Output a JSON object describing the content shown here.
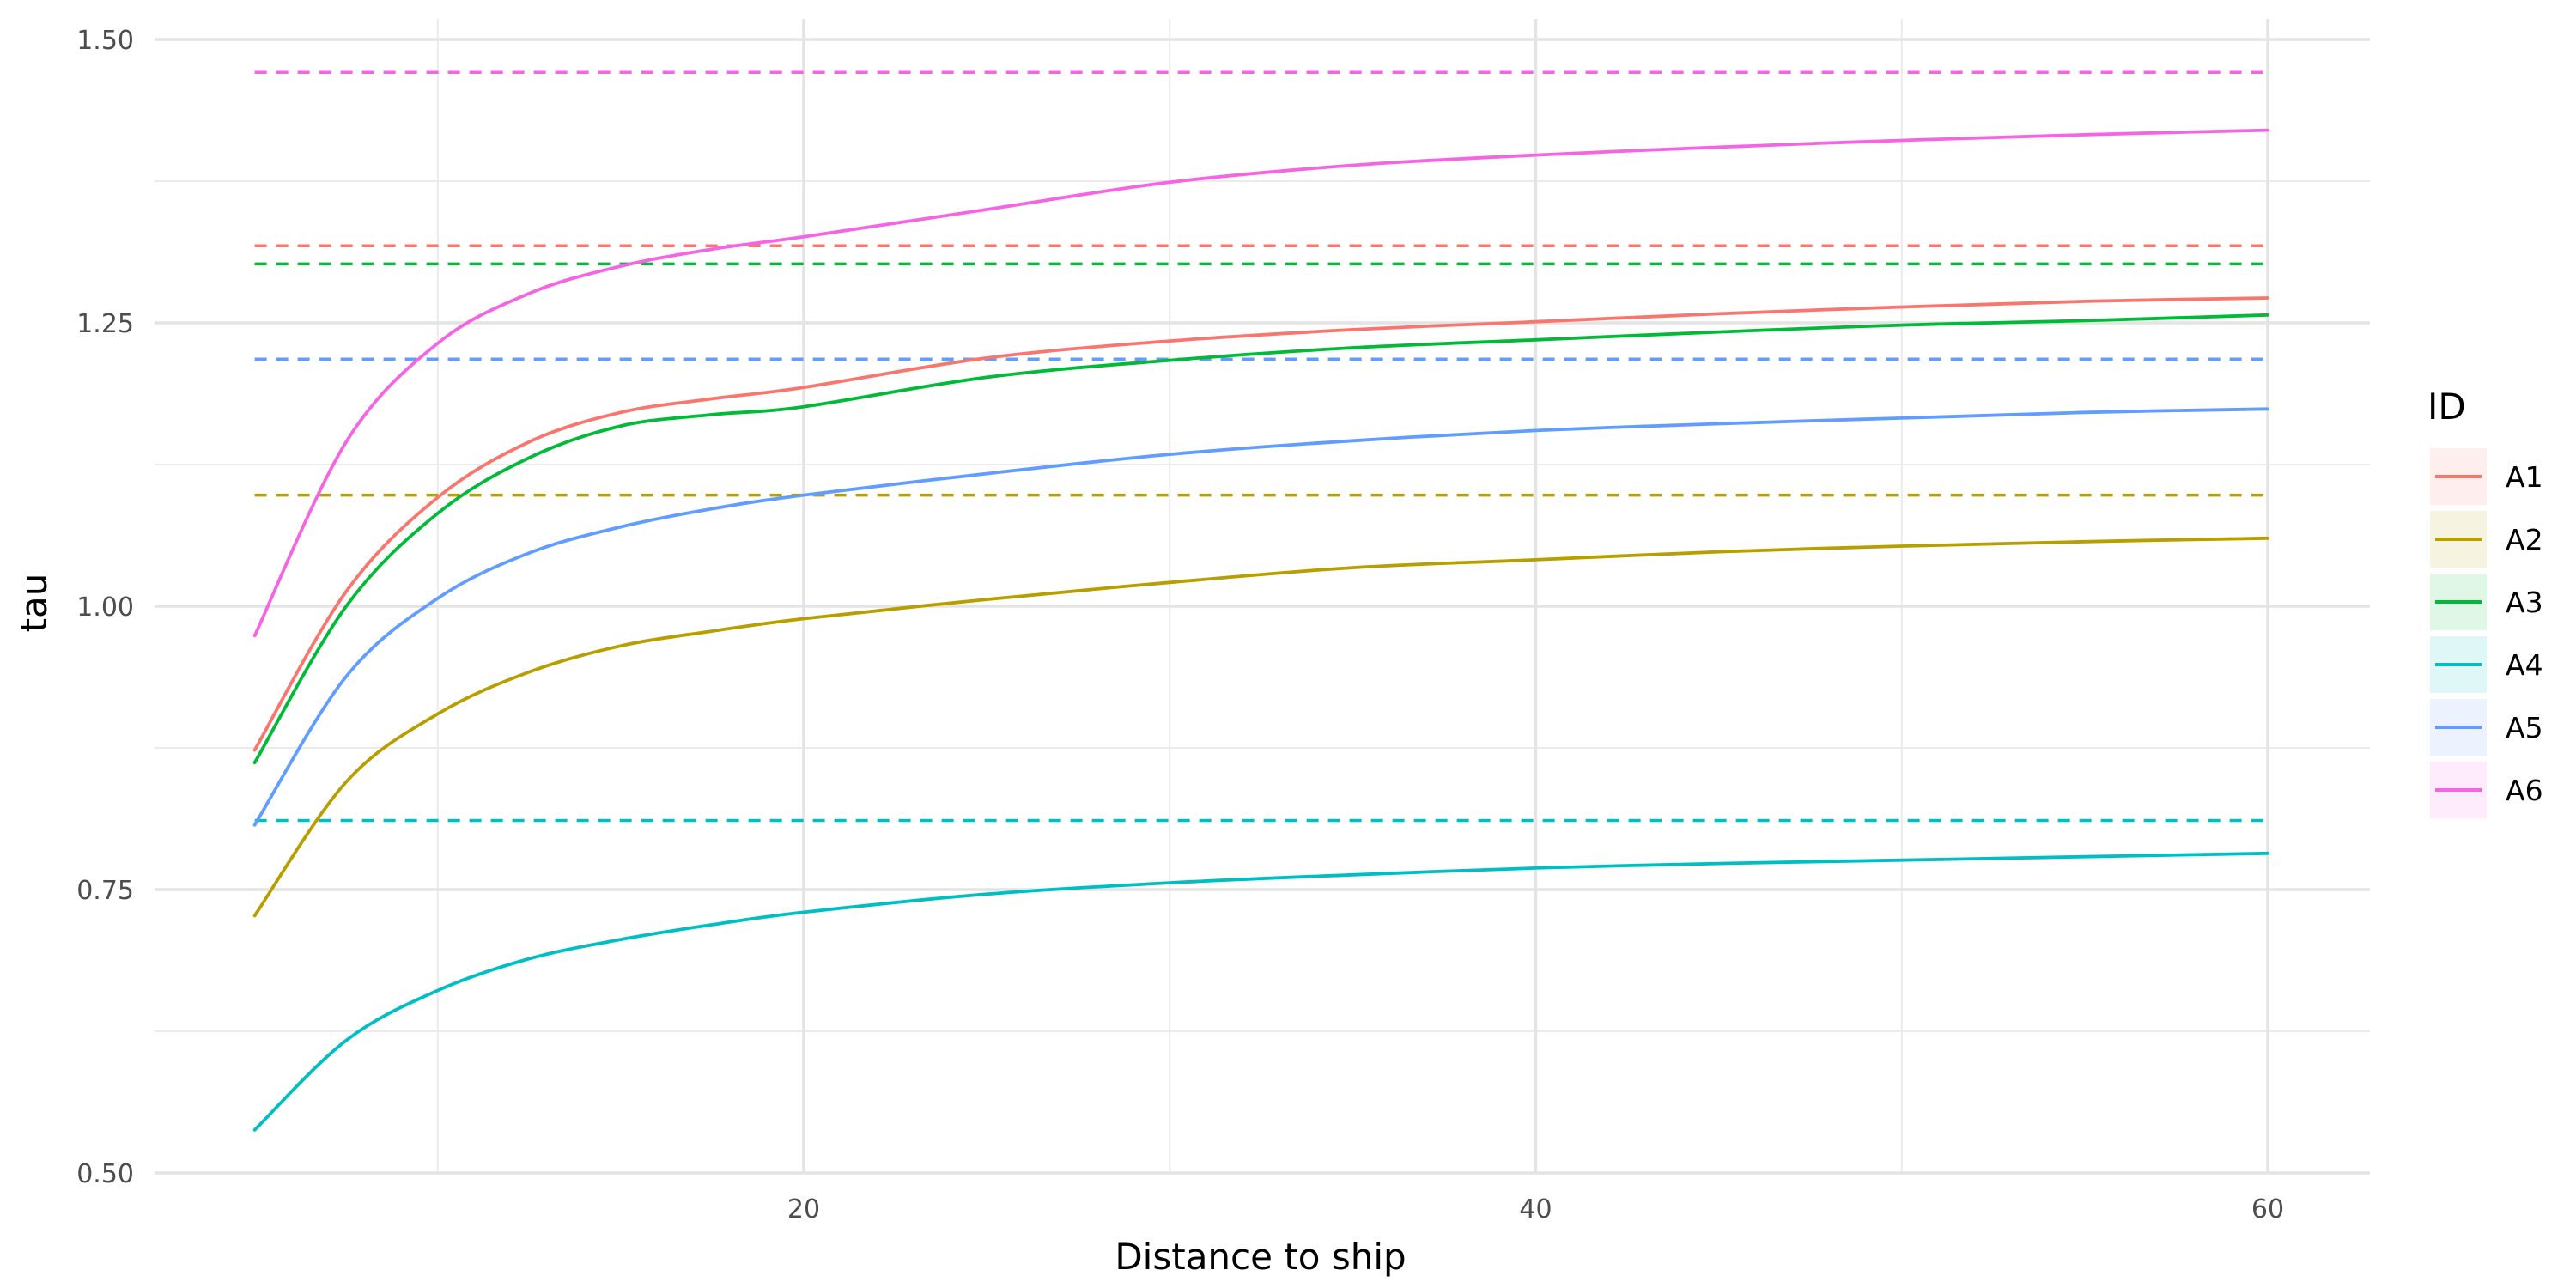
{
  "chart_data": {
    "type": "line",
    "title": "",
    "xlabel": "Distance to ship",
    "ylabel": "tau",
    "xlim": [
      0,
      62.5
    ],
    "ylim": [
      0.5,
      1.5
    ],
    "x_ticks": [
      {
        "value": 20,
        "label": "20"
      },
      {
        "value": 40,
        "label": "40"
      },
      {
        "value": 60,
        "label": "60"
      }
    ],
    "y_ticks": [
      {
        "value": 0.5,
        "label": "0.50"
      },
      {
        "value": 0.75,
        "label": "0.75"
      },
      {
        "value": 1.0,
        "label": "1.00"
      },
      {
        "value": 1.25,
        "label": "1.25"
      },
      {
        "value": 1.5,
        "label": "1.50"
      }
    ],
    "grid": true,
    "legend": {
      "title": "ID",
      "position": "right"
    },
    "x": [
      5,
      7.5,
      10,
      12.5,
      15,
      17.5,
      20,
      25,
      30,
      35,
      40,
      45,
      50,
      55,
      60
    ],
    "series": [
      {
        "name": "A1",
        "color": "#F8766D",
        "asymptote": 1.318,
        "values": [
          0.873,
          1.013,
          1.096,
          1.145,
          1.171,
          1.183,
          1.193,
          1.219,
          1.234,
          1.244,
          1.251,
          1.258,
          1.264,
          1.269,
          1.272
        ]
      },
      {
        "name": "A2",
        "color": "#B79F00",
        "asymptote": 1.098,
        "values": [
          0.727,
          0.845,
          0.905,
          0.942,
          0.965,
          0.978,
          0.989,
          1.006,
          1.021,
          1.034,
          1.041,
          1.048,
          1.053,
          1.057,
          1.06
        ]
      },
      {
        "name": "A3",
        "color": "#00BA38",
        "asymptote": 1.302,
        "values": [
          0.862,
          1.0,
          1.082,
          1.131,
          1.159,
          1.169,
          1.176,
          1.202,
          1.217,
          1.228,
          1.235,
          1.242,
          1.248,
          1.252,
          1.257
        ]
      },
      {
        "name": "A4",
        "color": "#00BFC4",
        "asymptote": 0.811,
        "values": [
          0.538,
          0.617,
          0.661,
          0.689,
          0.706,
          0.719,
          0.73,
          0.746,
          0.756,
          0.763,
          0.769,
          0.773,
          0.776,
          0.779,
          0.782
        ]
      },
      {
        "name": "A5",
        "color": "#619CFF",
        "asymptote": 1.218,
        "values": [
          0.807,
          0.938,
          1.007,
          1.047,
          1.07,
          1.086,
          1.098,
          1.117,
          1.134,
          1.146,
          1.155,
          1.161,
          1.166,
          1.171,
          1.174
        ]
      },
      {
        "name": "A6",
        "color": "#F564E3",
        "asymptote": 1.471,
        "values": [
          0.974,
          1.145,
          1.232,
          1.276,
          1.3,
          1.315,
          1.326,
          1.35,
          1.374,
          1.389,
          1.398,
          1.405,
          1.411,
          1.416,
          1.42
        ]
      }
    ]
  }
}
